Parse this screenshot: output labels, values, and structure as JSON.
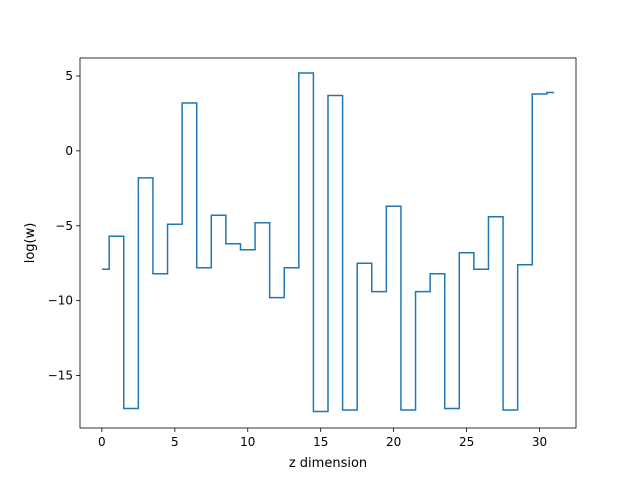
{
  "chart_data": {
    "type": "line",
    "drawstyle": "steps-mid",
    "title": "",
    "xlabel": "z dimension",
    "ylabel": "log(w)",
    "xlim": [
      -1.5,
      32.5
    ],
    "ylim": [
      -18.5,
      6.2
    ],
    "xticks": [
      0,
      5,
      10,
      15,
      20,
      25,
      30
    ],
    "yticks": [
      5,
      0,
      -5,
      -10,
      -15
    ],
    "ytick_labels": [
      "5",
      "0",
      "−5",
      "−10",
      "−15"
    ],
    "grid": false,
    "line_color": "#1f77b4",
    "x": [
      0,
      1,
      2,
      3,
      4,
      5,
      6,
      7,
      8,
      9,
      10,
      11,
      12,
      13,
      14,
      15,
      16,
      17,
      18,
      19,
      20,
      21,
      22,
      23,
      24,
      25,
      26,
      27,
      28,
      29,
      30,
      31
    ],
    "y": [
      -7.9,
      -5.7,
      -17.2,
      -1.8,
      -8.2,
      -4.9,
      3.2,
      -7.8,
      -4.3,
      -6.2,
      -6.6,
      -4.8,
      -9.8,
      -7.8,
      5.2,
      -17.4,
      3.7,
      -17.3,
      -7.5,
      -9.4,
      -3.7,
      -17.3,
      -9.4,
      -8.2,
      -17.2,
      -6.8,
      -7.9,
      -4.4,
      -17.3,
      -7.6,
      3.8,
      3.9
    ]
  }
}
